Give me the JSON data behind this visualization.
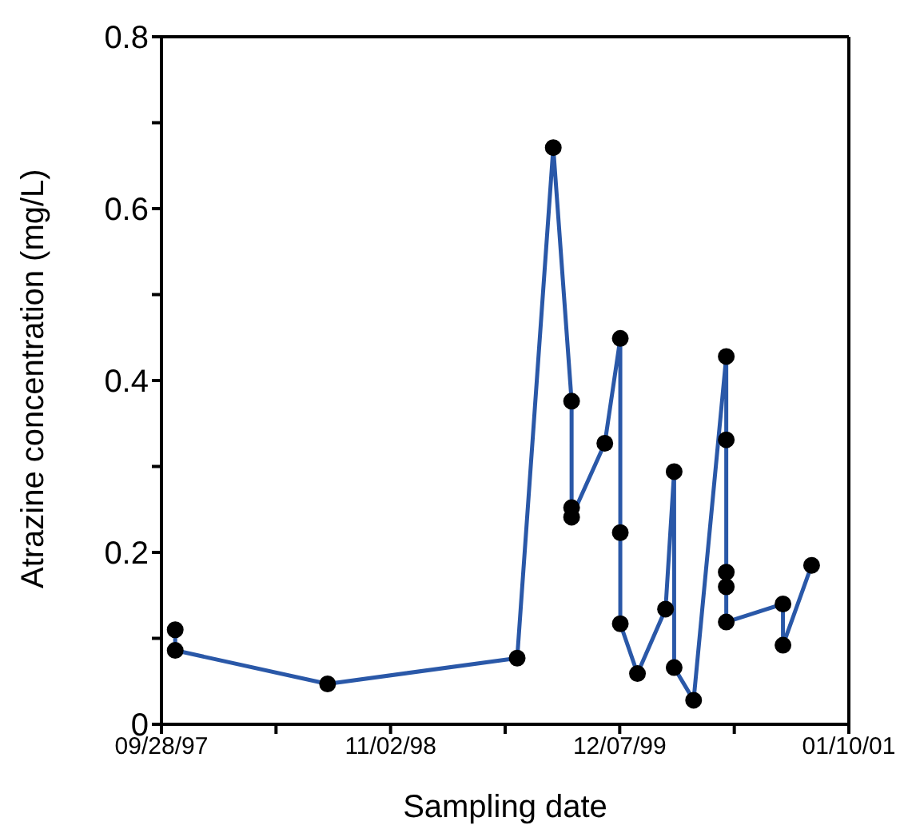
{
  "chart_data": {
    "type": "line",
    "xlabel": "Sampling date",
    "ylabel": "Atrazine concentration (mg/L)",
    "x": [
      "1997-10-22",
      "1997-10-22",
      "1998-07-15",
      "1999-06-11",
      "1999-08-13",
      "1999-09-14",
      "1999-09-14",
      "1999-09-14",
      "1999-11-11",
      "1999-12-08",
      "1999-12-08",
      "1999-12-08",
      "2000-01-07",
      "2000-02-25",
      "2000-03-11",
      "2000-03-11",
      "2000-04-14",
      "2000-06-10",
      "2000-06-10",
      "2000-06-10",
      "2000-06-10",
      "2000-06-10",
      "2000-09-17",
      "2000-09-17",
      "2000-11-06"
    ],
    "series": [
      {
        "color": "#2a58a8",
        "values": [
          0.11,
          0.086,
          0.047,
          0.077,
          0.671,
          0.376,
          0.252,
          0.241,
          0.327,
          0.449,
          0.223,
          0.117,
          0.059,
          0.134,
          0.294,
          0.066,
          0.028,
          0.428,
          0.331,
          0.177,
          0.16,
          0.119,
          0.14,
          0.092,
          0.185
        ]
      }
    ],
    "xlim": [
      "1997-09-28",
      "2001-01-10"
    ],
    "xticks": [
      {
        "value": "1997-09-28",
        "label": "09/28/97"
      },
      {
        "value": "1998-04-16",
        "label": null
      },
      {
        "value": "1998-11-02",
        "label": "11/02/98"
      },
      {
        "value": "1999-05-21",
        "label": null
      },
      {
        "value": "1999-12-07",
        "label": "12/07/99"
      },
      {
        "value": "2000-06-24",
        "label": null
      },
      {
        "value": "2001-01-10",
        "label": "01/10/01"
      }
    ],
    "ylim": [
      0,
      0.8
    ],
    "yticks": [
      0,
      {
        "value": 0.1,
        "label": null
      },
      0.2,
      {
        "value": 0.3,
        "label": null
      },
      0.4,
      {
        "value": 0.5,
        "label": null
      },
      0.6,
      {
        "value": 0.7,
        "label": null
      },
      0.8
    ],
    "marker": "circle",
    "line_style": "solid",
    "grid": false,
    "legend": false
  }
}
